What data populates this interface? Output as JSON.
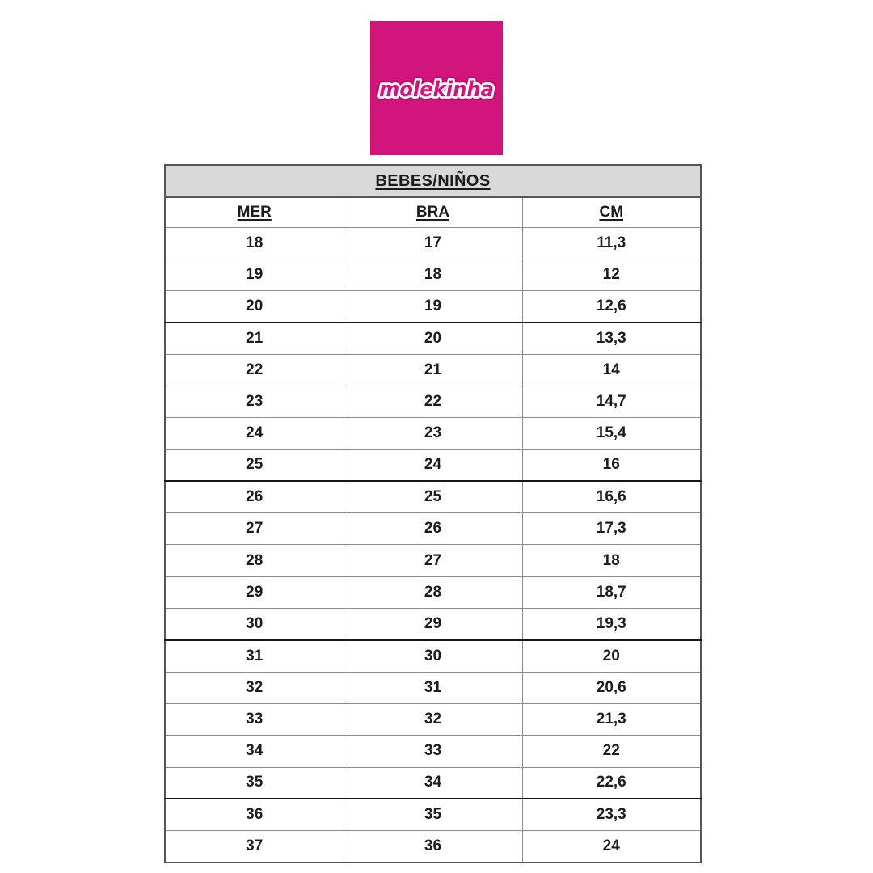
{
  "logo": {
    "brand": "molekinha",
    "bg_color": "#d2157c",
    "text_fill_color": "#d2157c",
    "text_outline_color": "#ffffff",
    "text_rim_color": "#b50f66"
  },
  "chart_data": {
    "type": "table",
    "title": "BEBES/NIÑOS",
    "columns": [
      "MER",
      "BRA",
      "CM"
    ],
    "rows": [
      [
        "18",
        "17",
        "11,3"
      ],
      [
        "19",
        "18",
        "12"
      ],
      [
        "20",
        "19",
        "12,6"
      ],
      [
        "21",
        "20",
        "13,3"
      ],
      [
        "22",
        "21",
        "14"
      ],
      [
        "23",
        "22",
        "14,7"
      ],
      [
        "24",
        "23",
        "15,4"
      ],
      [
        "25",
        "24",
        "16"
      ],
      [
        "26",
        "25",
        "16,6"
      ],
      [
        "27",
        "26",
        "17,3"
      ],
      [
        "28",
        "27",
        "18"
      ],
      [
        "29",
        "28",
        "18,7"
      ],
      [
        "30",
        "29",
        "19,3"
      ],
      [
        "31",
        "30",
        "20"
      ],
      [
        "32",
        "31",
        "20,6"
      ],
      [
        "33",
        "32",
        "21,3"
      ],
      [
        "34",
        "33",
        "22"
      ],
      [
        "35",
        "34",
        "22,6"
      ],
      [
        "36",
        "35",
        "23,3"
      ],
      [
        "37",
        "36",
        "24"
      ]
    ],
    "thick_separator_after_row_indices": [
      2,
      7,
      12,
      17
    ],
    "header_bg": "#d9d9d9",
    "layout": {
      "grid": true,
      "title_underlined": true,
      "column_headers_underlined": true
    }
  }
}
